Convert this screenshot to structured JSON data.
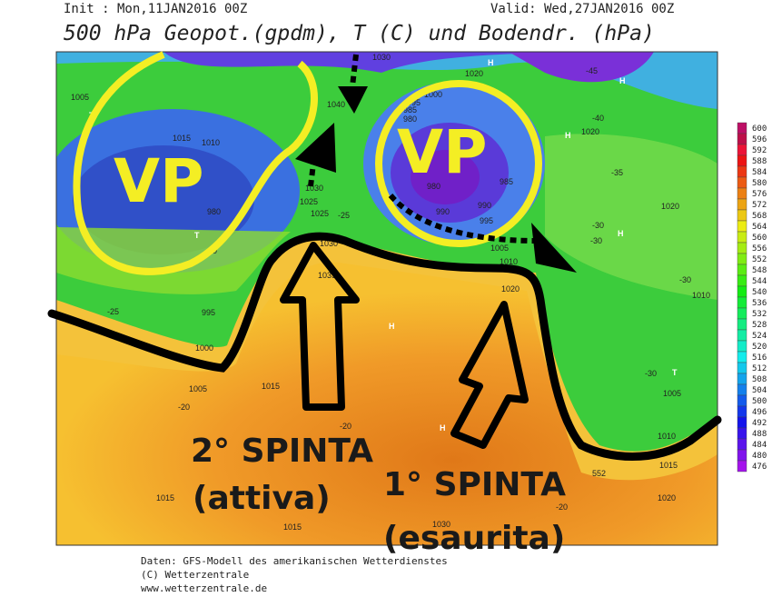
{
  "header": {
    "init": "Init : Mon,11JAN2016 00Z",
    "valid": "Valid: Wed,27JAN2016 00Z",
    "title": "500 hPa Geopot.(gpdm), T (C) und Bodendr. (hPa)"
  },
  "legend": {
    "values": [
      600,
      596,
      592,
      588,
      584,
      580,
      576,
      572,
      568,
      564,
      560,
      556,
      552,
      548,
      544,
      540,
      536,
      532,
      528,
      524,
      520,
      516,
      512,
      508,
      504,
      500,
      496,
      492,
      488,
      484,
      480,
      476
    ]
  },
  "annotations": {
    "vp_west": "VP",
    "vp_east": "VP",
    "push_2": "2° SPINTA",
    "push_2_state": "(attiva)",
    "push_1": "1° SPINTA",
    "push_1_state": "(esaurita)"
  },
  "map_labels": {
    "pressure": [
      1030,
      1005,
      1015,
      1010,
      980,
      1040,
      1030,
      1025,
      1025,
      1030,
      1035,
      995,
      1000,
      1005,
      1015,
      1015,
      1015,
      1030,
      1020,
      1015,
      1010,
      1005,
      1010,
      1020,
      1020,
      1020,
      1005,
      1010,
      1020,
      985,
      990,
      990,
      995,
      980,
      1000,
      995,
      985,
      980
    ],
    "temperature": [
      -45,
      -40,
      -35,
      -30,
      -30,
      -30,
      -25,
      -25,
      -20,
      -20,
      -20,
      -20,
      -30
    ],
    "centers": [
      "T",
      "H",
      "H",
      "H",
      "H",
      "T",
      "H",
      "H",
      "T"
    ],
    "contour": [
      552
    ]
  },
  "footer": {
    "line_1": "Daten: GFS-Modell des amerikanischen Wetterdienstes",
    "line_2": "(C) Wetterzentrale",
    "line_3": "www.wetterzentrale.de"
  }
}
